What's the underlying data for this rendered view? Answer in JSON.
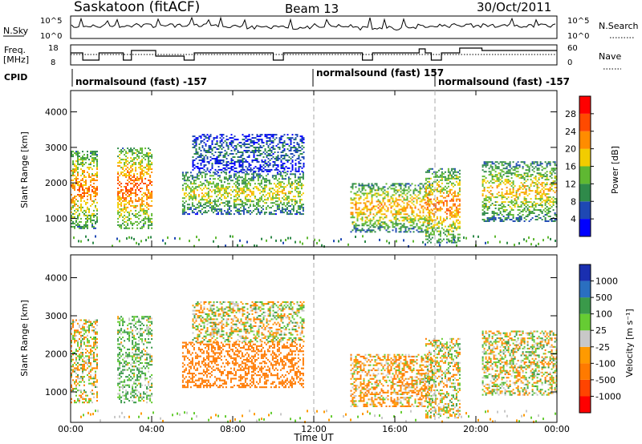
{
  "header": {
    "site_title": "Saskatoon (fitACF)",
    "beam_label": "Beam 13",
    "date_label": "30/Oct/2011"
  },
  "nsky_panel": {
    "label": "N.Sky",
    "left_ticks": [
      "10^5",
      "10^0"
    ],
    "right_ticks": [
      "10^5",
      "10^0"
    ],
    "right_label": "N.Search"
  },
  "freq_panel": {
    "label_line1": "Freq.",
    "label_line2": "[MHz]",
    "left_ticks": [
      "18",
      "8"
    ],
    "right_ticks": [
      "60",
      "0"
    ],
    "right_label": "Nave"
  },
  "cpid": {
    "label": "CPID",
    "segments": [
      {
        "text": "normalsound (fast) -157"
      },
      {
        "text": "normalsound (fast) 157"
      },
      {
        "text": "normalsound (fast) -157"
      }
    ]
  },
  "axes": {
    "ylabel": "Slant Range [km]",
    "yticks": [
      "1000",
      "2000",
      "3000",
      "4000"
    ],
    "xticks": [
      "00:00",
      "04:00",
      "08:00",
      "12:00",
      "16:00",
      "20:00",
      "00:00"
    ],
    "xlabel": "Time UT"
  },
  "power_colorbar": {
    "label": "Power [dB]",
    "ticks": [
      "4",
      "8",
      "12",
      "16",
      "20",
      "24",
      "28"
    ],
    "colors": [
      "#0000ff",
      "#1e48b4",
      "#2f8a4a",
      "#5fb832",
      "#f2cc00",
      "#ff8c00",
      "#ff4a00",
      "#ff0000"
    ]
  },
  "velocity_colorbar": {
    "label": "Velocity [m s⁻¹]",
    "ticks": [
      "1000",
      "500",
      "100",
      "25",
      "-25",
      "-100",
      "-500",
      "-1000"
    ],
    "colors": [
      "#1a2fb0",
      "#2a6fc0",
      "#3a9a4a",
      "#66cc33",
      "#c8c8c8",
      "#ff9a00",
      "#ff7a00",
      "#ff4400",
      "#ff0000"
    ]
  },
  "chart_data": [
    {
      "type": "heatmap",
      "name": "power",
      "x_unit": "hours UT",
      "xlim": [
        0,
        24
      ],
      "ylim": [
        200,
        4600
      ],
      "scattering_regions": [
        {
          "t0": 0.0,
          "t1": 1.3,
          "r0": 700,
          "r1": 2900,
          "level": 24
        },
        {
          "t0": 2.3,
          "t1": 4.0,
          "r0": 700,
          "r1": 3000,
          "level": 26
        },
        {
          "t0": 5.5,
          "t1": 11.5,
          "r0": 1100,
          "r1": 2300,
          "level": 18
        },
        {
          "t0": 6.0,
          "t1": 11.5,
          "r0": 2300,
          "r1": 3400,
          "level": 8
        },
        {
          "t0": 13.8,
          "t1": 17.8,
          "r0": 600,
          "r1": 2000,
          "level": 22
        },
        {
          "t0": 17.5,
          "t1": 19.2,
          "r0": 300,
          "r1": 2400,
          "level": 24
        },
        {
          "t0": 20.3,
          "t1": 24.0,
          "r0": 900,
          "r1": 2600,
          "level": 20
        }
      ]
    },
    {
      "type": "heatmap",
      "name": "velocity",
      "x_unit": "hours UT",
      "xlim": [
        0,
        24
      ],
      "ylim": [
        200,
        4600
      ],
      "scattering_regions": [
        {
          "t0": 0.0,
          "t1": 1.3,
          "r0": 700,
          "r1": 2900,
          "value": -25
        },
        {
          "t0": 2.3,
          "t1": 4.0,
          "r0": 700,
          "r1": 3000,
          "value": 100
        },
        {
          "t0": 5.5,
          "t1": 11.5,
          "r0": 1100,
          "r1": 2300,
          "value": -300
        },
        {
          "t0": 6.0,
          "t1": 11.5,
          "r0": 2300,
          "r1": 3400,
          "value": 0
        },
        {
          "t0": 13.8,
          "t1": 17.8,
          "r0": 600,
          "r1": 2000,
          "value": -80
        },
        {
          "t0": 17.5,
          "t1": 19.2,
          "r0": 300,
          "r1": 2400,
          "value": 0
        },
        {
          "t0": 20.3,
          "t1": 24.0,
          "r0": 900,
          "r1": 2600,
          "value": 0
        }
      ]
    }
  ]
}
